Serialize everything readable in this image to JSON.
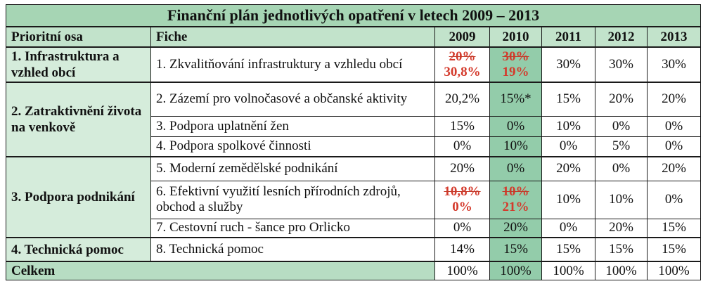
{
  "title": "Finanční plán jednotlivých opatření v letech 2009 – 2013",
  "headers": {
    "axis": "Prioritní osa",
    "fiche": "Fiche",
    "years": [
      "2009",
      "2010",
      "2011",
      "2012",
      "2013"
    ]
  },
  "axes": [
    "1. Infrastruktura a vzhled obcí",
    "2. Zatraktivnění života na venkově",
    "3. Podpora podnikání",
    "4. Technická pomoc"
  ],
  "rows": [
    {
      "fiche": "1. Zkvalitňování infrastruktury a vzhledu obcí",
      "y2009_old": "20%",
      "y2009_new": "30,8%",
      "y2010_old": "30%",
      "y2010_new": "19%",
      "y2011": "30%",
      "y2012": "30%",
      "y2013": "30%"
    },
    {
      "fiche": "2. Zázemí pro volnočasové a občanské aktivity",
      "y2009": "20,2%",
      "y2010": "15%*",
      "y2011": "15%",
      "y2012": "20%",
      "y2013": "20%"
    },
    {
      "fiche": "3. Podpora uplatnění žen",
      "y2009": "15%",
      "y2010": "0%",
      "y2011": "10%",
      "y2012": "0%",
      "y2013": "0%"
    },
    {
      "fiche": "4. Podpora spolkové činnosti",
      "y2009": "0%",
      "y2010": "10%",
      "y2011": "0%",
      "y2012": "5%",
      "y2013": "0%"
    },
    {
      "fiche": "5. Moderní zemědělské podnikání",
      "y2009": "20%",
      "y2010": "0%",
      "y2011": "20%",
      "y2012": "0%",
      "y2013": "20%"
    },
    {
      "fiche": "6. Efektivní využití lesních přírodních zdrojů, obchod a služby",
      "y2009_old": "10,8%",
      "y2009_new": "0%",
      "y2010_old": "10%",
      "y2010_new": "21%",
      "y2011": "10%",
      "y2012": "10%",
      "y2013": "0%"
    },
    {
      "fiche": "7. Cestovní ruch - šance pro Orlicko",
      "y2009": "0%",
      "y2010": "20%",
      "y2011": "0%",
      "y2012": "20%",
      "y2013": "15%"
    },
    {
      "fiche": "8. Technická pomoc",
      "y2009": "14%",
      "y2010": "15%",
      "y2011": "15%",
      "y2012": "15%",
      "y2013": "15%"
    }
  ],
  "total": {
    "label": "Celkem",
    "values": [
      "100%",
      "100%",
      "100%",
      "100%",
      "100%"
    ]
  }
}
